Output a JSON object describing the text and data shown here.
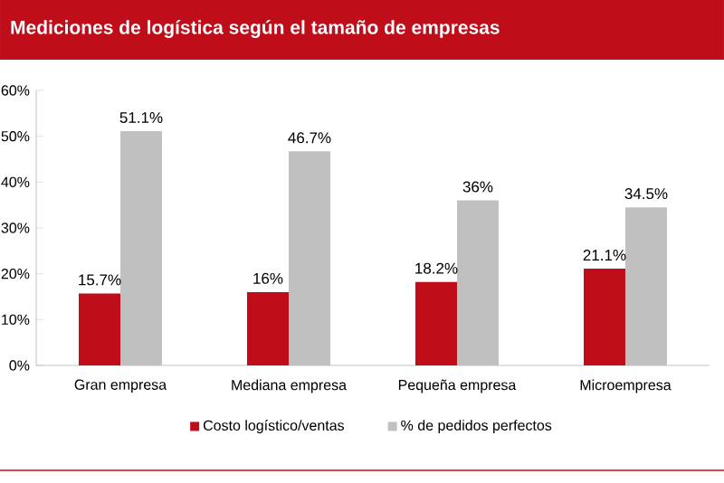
{
  "chart_data": {
    "type": "bar",
    "title": "Mediciones de logística según el tamaño de  empresas",
    "categories": [
      "Gran empresa",
      "Mediana empresa",
      "Pequeña empresa",
      "Microempresa"
    ],
    "series": [
      {
        "name": "Costo logístico/ventas",
        "color": "#c00d1a",
        "values": [
          15.7,
          16,
          18.2,
          21.1
        ],
        "value_labels": [
          "15.7%",
          "16%",
          "18.2%",
          "21.1%"
        ]
      },
      {
        "name": "% de pedidos perfectos",
        "color": "#c0c0c0",
        "values": [
          51.1,
          46.7,
          36,
          34.5
        ],
        "value_labels": [
          "51.1%",
          "46.7%",
          "36%",
          "34.5%"
        ]
      }
    ],
    "ylim": [
      0,
      60
    ],
    "yticks": [
      {
        "value": 0,
        "label": "0%"
      },
      {
        "value": 10,
        "label": "10%"
      },
      {
        "value": 20,
        "label": "20%"
      },
      {
        "value": 30,
        "label": "30%"
      },
      {
        "value": 40,
        "label": "40%"
      },
      {
        "value": 50,
        "label": "50%"
      },
      {
        "value": 60,
        "label": "60%"
      }
    ],
    "legend": "bottom",
    "grid": false
  }
}
